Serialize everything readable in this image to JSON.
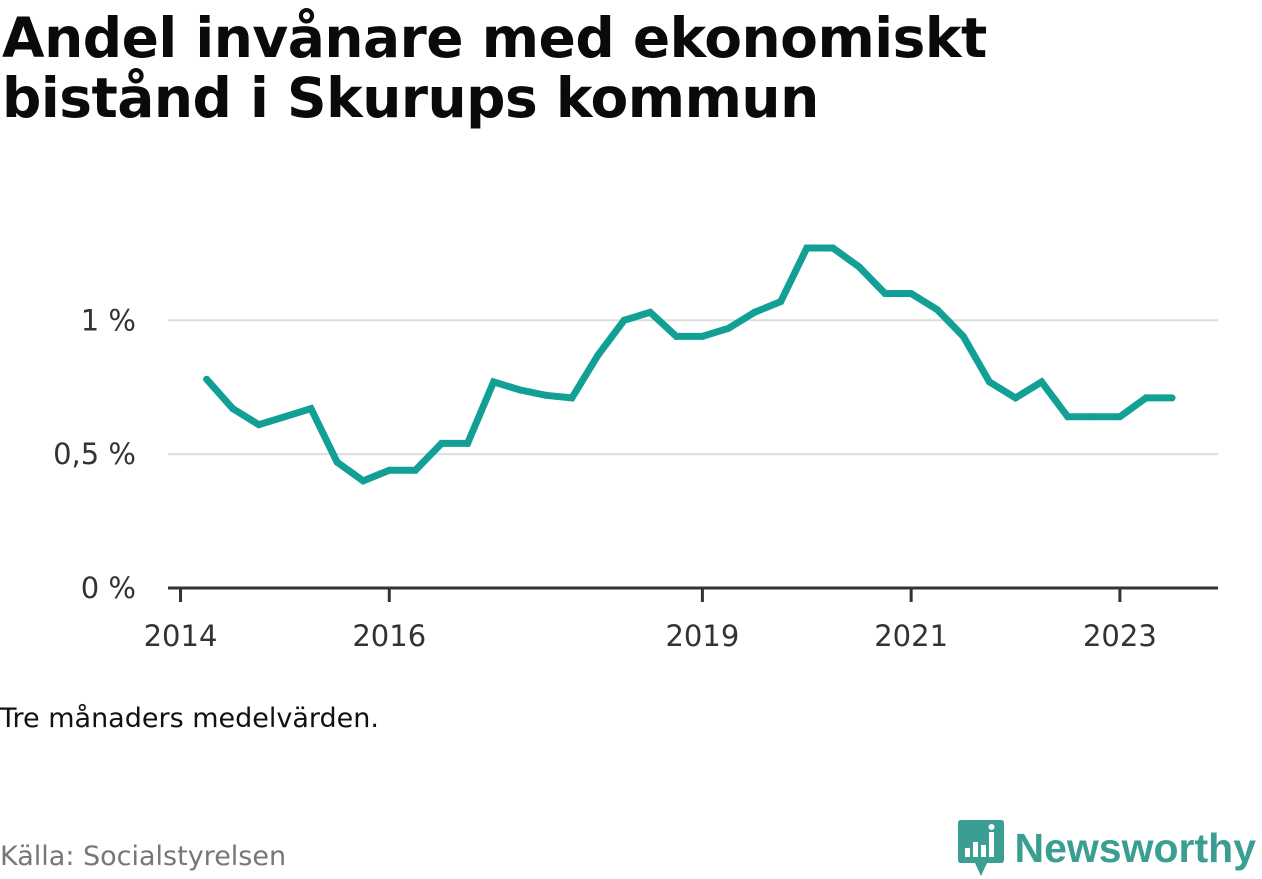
{
  "title": "Andel invånare med ekonomiskt bistånd i Skurups kommun",
  "note": "Tre månaders medelvärden.",
  "source": "Källa: Socialstyrelsen",
  "brand": {
    "name": "Newsworthy",
    "icon": "newsworthy-logo-icon",
    "color": "#3a9e93"
  },
  "colors": {
    "line": "#12a096",
    "grid": "#dddddd",
    "axis": "#333333"
  },
  "chart_data": {
    "type": "line",
    "title": "Andel invånare med ekonomiskt bistånd i Skurups kommun",
    "xlabel": "",
    "ylabel": "",
    "x_ticks": [
      {
        "value": 2014.0,
        "label": "2014"
      },
      {
        "value": 2016.0,
        "label": "2016"
      },
      {
        "value": 2019.0,
        "label": "2019"
      },
      {
        "value": 2021.0,
        "label": "2021"
      },
      {
        "value": 2023.0,
        "label": "2023"
      }
    ],
    "y_ticks": [
      {
        "value": 0,
        "label": "0 %"
      },
      {
        "value": 0.5,
        "label": "0,5 %"
      },
      {
        "value": 1.0,
        "label": "1 %"
      }
    ],
    "xlim": [
      2013.88,
      2023.94
    ],
    "ylim": [
      0,
      1.3
    ],
    "grid": true,
    "series": [
      {
        "values": [
          {
            "x": 2014.25,
            "y": 0.78
          },
          {
            "x": 2014.5,
            "y": 0.67
          },
          {
            "x": 2014.75,
            "y": 0.61
          },
          {
            "x": 2015.0,
            "y": 0.64
          },
          {
            "x": 2015.25,
            "y": 0.67
          },
          {
            "x": 2015.5,
            "y": 0.47
          },
          {
            "x": 2015.75,
            "y": 0.4
          },
          {
            "x": 2016.0,
            "y": 0.44
          },
          {
            "x": 2016.25,
            "y": 0.44
          },
          {
            "x": 2016.5,
            "y": 0.54
          },
          {
            "x": 2016.75,
            "y": 0.54
          },
          {
            "x": 2017.0,
            "y": 0.77
          },
          {
            "x": 2017.25,
            "y": 0.74
          },
          {
            "x": 2017.5,
            "y": 0.72
          },
          {
            "x": 2017.75,
            "y": 0.71
          },
          {
            "x": 2018.0,
            "y": 0.87
          },
          {
            "x": 2018.25,
            "y": 1.0
          },
          {
            "x": 2018.5,
            "y": 1.03
          },
          {
            "x": 2018.75,
            "y": 0.94
          },
          {
            "x": 2019.0,
            "y": 0.94
          },
          {
            "x": 2019.25,
            "y": 0.97
          },
          {
            "x": 2019.5,
            "y": 1.03
          },
          {
            "x": 2019.75,
            "y": 1.07
          },
          {
            "x": 2020.0,
            "y": 1.27
          },
          {
            "x": 2020.25,
            "y": 1.27
          },
          {
            "x": 2020.5,
            "y": 1.2
          },
          {
            "x": 2020.75,
            "y": 1.1
          },
          {
            "x": 2021.0,
            "y": 1.1
          },
          {
            "x": 2021.25,
            "y": 1.04
          },
          {
            "x": 2021.5,
            "y": 0.94
          },
          {
            "x": 2021.75,
            "y": 0.77
          },
          {
            "x": 2022.0,
            "y": 0.71
          },
          {
            "x": 2022.25,
            "y": 0.77
          },
          {
            "x": 2022.5,
            "y": 0.64
          },
          {
            "x": 2022.75,
            "y": 0.64
          },
          {
            "x": 2023.0,
            "y": 0.64
          },
          {
            "x": 2023.25,
            "y": 0.71
          },
          {
            "x": 2023.5,
            "y": 0.71
          }
        ]
      }
    ]
  }
}
